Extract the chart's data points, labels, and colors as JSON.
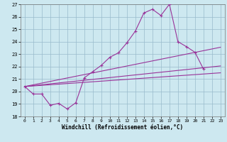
{
  "bg_color": "#cde8f0",
  "line_color": "#993399",
  "grid_color": "#99bbcc",
  "xlabel": "Windchill (Refroidissement éolien,°C)",
  "xlim": [
    -0.5,
    23.5
  ],
  "ylim": [
    18,
    27
  ],
  "yticks": [
    18,
    19,
    20,
    21,
    22,
    23,
    24,
    25,
    26,
    27
  ],
  "xticks": [
    0,
    1,
    2,
    3,
    4,
    5,
    6,
    7,
    8,
    9,
    10,
    11,
    12,
    13,
    14,
    15,
    16,
    17,
    18,
    19,
    20,
    21,
    22,
    23
  ],
  "zigzag_x": [
    0,
    1,
    2,
    3,
    4,
    5,
    6,
    7,
    8,
    9,
    10,
    11,
    12,
    13,
    14,
    15,
    16,
    17,
    18,
    19,
    20,
    21
  ],
  "zigzag_y": [
    20.4,
    19.8,
    19.8,
    18.9,
    19.05,
    18.6,
    19.1,
    21.1,
    21.6,
    22.1,
    22.75,
    23.1,
    23.9,
    24.85,
    26.3,
    26.6,
    26.1,
    27.0,
    24.0,
    23.6,
    23.15,
    21.8
  ],
  "line1_x": [
    0,
    23
  ],
  "line1_y": [
    20.4,
    21.5
  ],
  "line2_x": [
    0,
    23
  ],
  "line2_y": [
    20.4,
    22.05
  ],
  "line3_x": [
    0,
    23
  ],
  "line3_y": [
    20.4,
    23.55
  ]
}
